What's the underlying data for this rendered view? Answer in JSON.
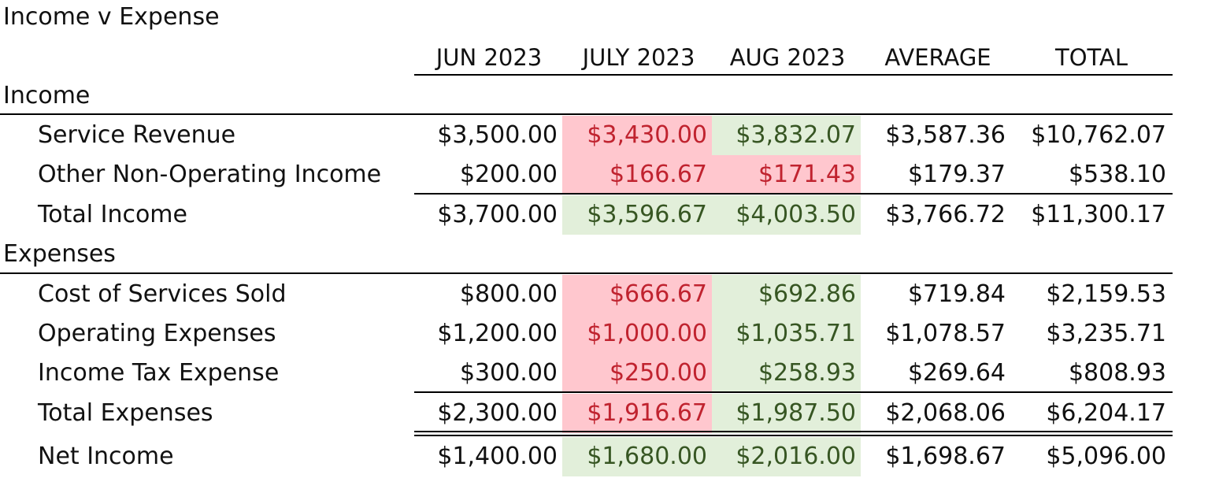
{
  "title": "Income v Expense",
  "columns": [
    "JUN 2023",
    "JULY 2023",
    "AUG 2023",
    "AVERAGE",
    "TOTAL"
  ],
  "sections": {
    "income": {
      "label": "Income",
      "rows": [
        {
          "label": "Service Revenue",
          "values": [
            "$3,500.00",
            "$3,430.00",
            "$3,832.07",
            "$3,587.36",
            "$10,762.07"
          ],
          "status": [
            "",
            "neg",
            "pos",
            "",
            ""
          ]
        },
        {
          "label": "Other Non-Operating Income",
          "values": [
            "$200.00",
            "$166.67",
            "$171.43",
            "$179.37",
            "$538.10"
          ],
          "status": [
            "",
            "neg",
            "neg",
            "",
            ""
          ]
        }
      ],
      "total": {
        "label": "Total Income",
        "values": [
          "$3,700.00",
          "$3,596.67",
          "$4,003.50",
          "$3,766.72",
          "$11,300.17"
        ],
        "status": [
          "",
          "pos",
          "pos",
          "",
          ""
        ]
      }
    },
    "expenses": {
      "label": "Expenses",
      "rows": [
        {
          "label": "Cost of Services Sold",
          "values": [
            "$800.00",
            "$666.67",
            "$692.86",
            "$719.84",
            "$2,159.53"
          ],
          "status": [
            "",
            "neg",
            "pos",
            "",
            ""
          ]
        },
        {
          "label": "Operating Expenses",
          "values": [
            "$1,200.00",
            "$1,000.00",
            "$1,035.71",
            "$1,078.57",
            "$3,235.71"
          ],
          "status": [
            "",
            "neg",
            "pos",
            "",
            ""
          ]
        },
        {
          "label": "Income Tax Expense",
          "values": [
            "$300.00",
            "$250.00",
            "$258.93",
            "$269.64",
            "$808.93"
          ],
          "status": [
            "",
            "neg",
            "pos",
            "",
            ""
          ]
        }
      ],
      "total": {
        "label": "Total Expenses",
        "values": [
          "$2,300.00",
          "$1,916.67",
          "$1,987.50",
          "$2,068.06",
          "$6,204.17"
        ],
        "status": [
          "",
          "neg",
          "pos",
          "",
          ""
        ]
      }
    }
  },
  "net_income": {
    "label": "Net Income",
    "values": [
      "$1,400.00",
      "$1,680.00",
      "$2,016.00",
      "$1,698.67",
      "$5,096.00"
    ],
    "status": [
      "",
      "pos",
      "pos",
      "",
      ""
    ]
  },
  "colors": {
    "negative_fill": "#ffc7ce",
    "negative_text": "#c0232f",
    "positive_fill": "#e2efda",
    "positive_text": "#375623"
  }
}
